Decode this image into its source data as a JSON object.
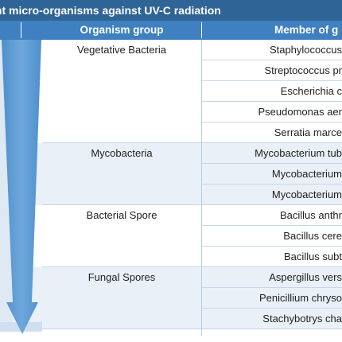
{
  "title": "of different micro-organisms against UV-C radiation",
  "headers": {
    "group": "Organism group",
    "member": "Member of g"
  },
  "rows": [
    {
      "group": "Vegetative Bacteria",
      "member": "Staphylococcus"
    },
    {
      "group": "",
      "member": "Streptococcus pr"
    },
    {
      "group": "",
      "member": "Escherichia c"
    },
    {
      "group": "",
      "member": "Pseudomonas aer"
    },
    {
      "group": "",
      "member": "Serratia marce"
    },
    {
      "group": "Mycobacteria",
      "member": "Mycobacterium tub"
    },
    {
      "group": "",
      "member": "Mycobacterium"
    },
    {
      "group": "",
      "member": "Mycobacterium"
    },
    {
      "group": "Bacterial Spore",
      "member": "Bacillus anthr"
    },
    {
      "group": "",
      "member": "Bacillus cere"
    },
    {
      "group": "",
      "member": "Bacillus subt"
    },
    {
      "group": "Fungal Spores",
      "member": "Aspergillus vers"
    },
    {
      "group": "",
      "member": "Penicillium chryso"
    },
    {
      "group": "",
      "member": "Stachybotrys cha"
    }
  ],
  "colors": {
    "title_bg": "#2f6496",
    "header_bg": "#3f80c0",
    "arrow": "#5b9bd5",
    "alt_row": "#e9f0f8"
  }
}
